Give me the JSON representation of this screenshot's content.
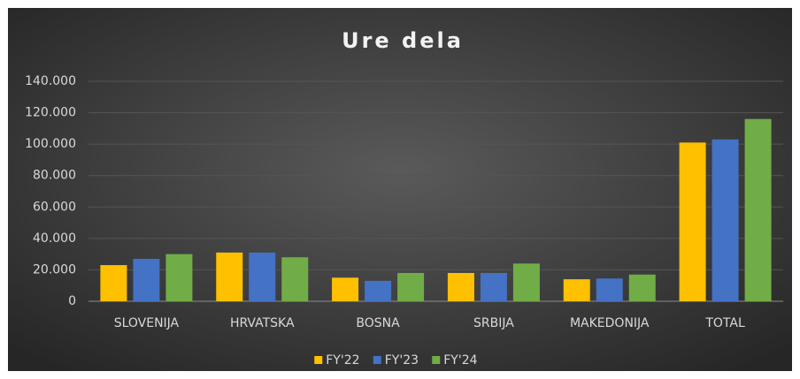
{
  "chart_data": {
    "type": "bar",
    "title": "Ure dela",
    "categories": [
      "SLOVENIJA",
      "HRVATSKA",
      "BOSNA",
      "SRBIJA",
      "MAKEDONIJA",
      "TOTAL"
    ],
    "series": [
      {
        "name": "FY'22",
        "color": "#ffc000",
        "values": [
          23000,
          31000,
          15000,
          18000,
          14000,
          101000
        ]
      },
      {
        "name": "FY'23",
        "color": "#4472c4",
        "values": [
          27000,
          31000,
          13000,
          18000,
          14500,
          103000
        ]
      },
      {
        "name": "FY'24",
        "color": "#70ad47",
        "values": [
          30000,
          28000,
          18000,
          24000,
          17000,
          116000
        ]
      }
    ],
    "ylim": [
      0,
      140000
    ],
    "yticks": [
      0,
      {
        "value": 20000,
        "label": "20.000"
      },
      {
        "value": 40000,
        "label": "40.000"
      },
      {
        "value": 60000,
        "label": "60.000"
      },
      {
        "value": 80000,
        "label": "80.000"
      },
      {
        "value": 100000,
        "label": "100.000"
      },
      {
        "value": 120000,
        "label": "120.000"
      },
      {
        "value": 140000,
        "label": "140.000"
      }
    ],
    "grid": true,
    "legend": "bottom"
  }
}
